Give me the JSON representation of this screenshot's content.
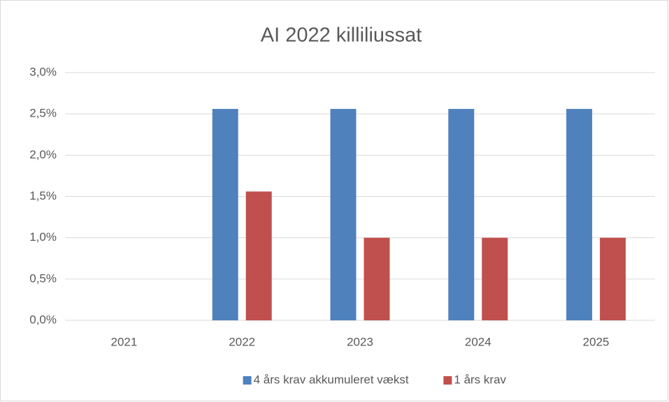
{
  "chart_data": {
    "type": "bar",
    "title": "AI 2022 killiliussat",
    "categories": [
      "2021",
      "2022",
      "2023",
      "2024",
      "2025"
    ],
    "series": [
      {
        "name": "4 års krav akkumuleret vækst",
        "color": "#4f81bd",
        "values": [
          0,
          2.56,
          2.56,
          2.56,
          2.56
        ]
      },
      {
        "name": "1 års krav",
        "color": "#c0504d",
        "values": [
          0,
          1.56,
          1.0,
          1.0,
          1.0
        ]
      }
    ],
    "ylim": [
      0,
      3
    ],
    "yticks": [
      {
        "value": 0,
        "label": "0,0%"
      },
      {
        "value": 0.5,
        "label": "0,5%"
      },
      {
        "value": 1,
        "label": "1,0%"
      },
      {
        "value": 1.5,
        "label": "1,5%"
      },
      {
        "value": 2,
        "label": "2,0%"
      },
      {
        "value": 2.5,
        "label": "2,5%"
      },
      {
        "value": 3,
        "label": "3,0%"
      }
    ],
    "grid": true,
    "legend": "bottom"
  }
}
